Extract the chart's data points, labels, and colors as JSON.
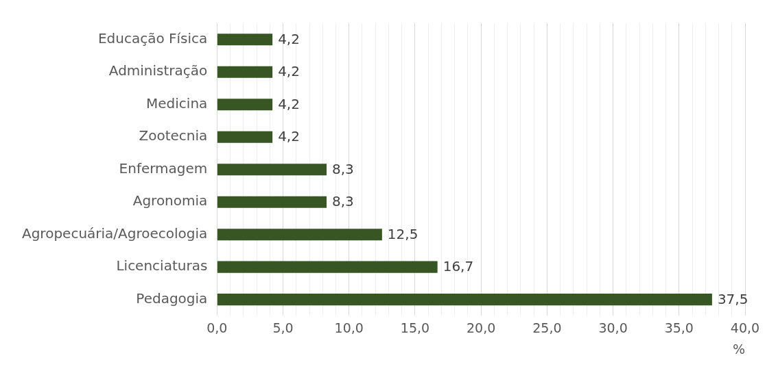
{
  "chart_data": {
    "type": "bar",
    "orientation": "horizontal",
    "xlabel": "%",
    "categories": [
      "Educação Física",
      "Administração",
      "Medicina",
      "Zootecnia",
      "Enfermagem",
      "Agronomia",
      "Agropecuária/Agroecologia",
      "Licenciaturas",
      "Pedagogia"
    ],
    "values": [
      4.2,
      4.2,
      4.2,
      4.2,
      8.3,
      8.3,
      12.5,
      16.7,
      37.5
    ],
    "value_labels": [
      "4,2",
      "4,2",
      "4,2",
      "4,2",
      "8,3",
      "8,3",
      "12,5",
      "16,7",
      "37,5"
    ],
    "color": "#375623",
    "xlim": [
      0,
      40
    ],
    "xticks": [
      {
        "value": 0,
        "label": "0,0"
      },
      {
        "value": 1,
        "label": null
      },
      {
        "value": 2,
        "label": null
      },
      {
        "value": 3,
        "label": null
      },
      {
        "value": 4,
        "label": null
      },
      {
        "value": 5,
        "label": "5,0"
      },
      {
        "value": 6,
        "label": null
      },
      {
        "value": 7,
        "label": null
      },
      {
        "value": 8,
        "label": null
      },
      {
        "value": 9,
        "label": null
      },
      {
        "value": 10,
        "label": "10,0"
      },
      {
        "value": 11,
        "label": null
      },
      {
        "value": 12,
        "label": null
      },
      {
        "value": 13,
        "label": null
      },
      {
        "value": 14,
        "label": null
      },
      {
        "value": 15,
        "label": "15,0"
      },
      {
        "value": 16,
        "label": null
      },
      {
        "value": 17,
        "label": null
      },
      {
        "value": 18,
        "label": null
      },
      {
        "value": 19,
        "label": null
      },
      {
        "value": 20,
        "label": "20,0"
      },
      {
        "value": 21,
        "label": null
      },
      {
        "value": 22,
        "label": null
      },
      {
        "value": 23,
        "label": null
      },
      {
        "value": 24,
        "label": null
      },
      {
        "value": 25,
        "label": "25,0"
      },
      {
        "value": 26,
        "label": null
      },
      {
        "value": 27,
        "label": null
      },
      {
        "value": 28,
        "label": null
      },
      {
        "value": 29,
        "label": null
      },
      {
        "value": 30,
        "label": "30,0"
      },
      {
        "value": 31,
        "label": null
      },
      {
        "value": 32,
        "label": null
      },
      {
        "value": 33,
        "label": null
      },
      {
        "value": 34,
        "label": null
      },
      {
        "value": 35,
        "label": "35,0"
      },
      {
        "value": 36,
        "label": null
      },
      {
        "value": 37,
        "label": null
      },
      {
        "value": 38,
        "label": null
      },
      {
        "value": 39,
        "label": null
      },
      {
        "value": 40,
        "label": "40,0"
      }
    ],
    "grid": "x",
    "legend": false
  }
}
